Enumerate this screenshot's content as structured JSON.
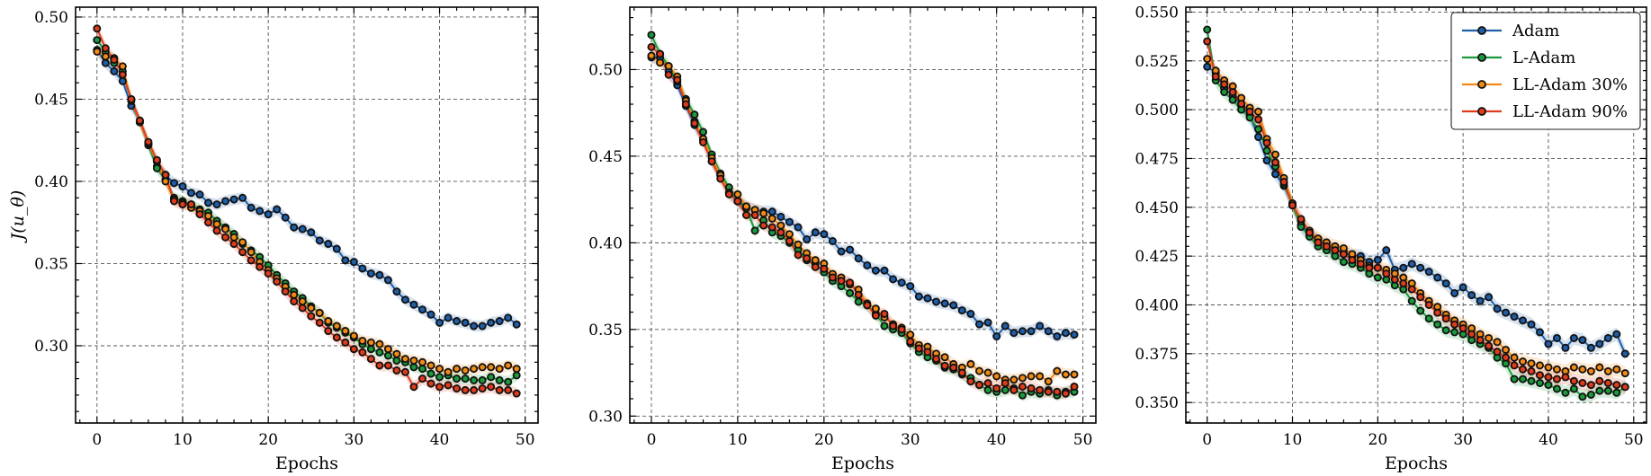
{
  "chart_data": [
    {
      "type": "line",
      "xlabel": "Epochs",
      "ylabel": "J(u_θ)",
      "xlim": [
        -2.5,
        51.5
      ],
      "ylim": [
        0.253,
        0.506
      ],
      "xticks": [
        0,
        10,
        20,
        30,
        40,
        50
      ],
      "yticks": [
        0.3,
        0.35,
        0.4,
        0.45,
        0.5
      ],
      "ytick_labels": [
        "0.30",
        "0.35",
        "0.40",
        "0.45",
        "0.50"
      ],
      "grid": true,
      "x": [
        0,
        1,
        2,
        3,
        4,
        5,
        6,
        7,
        8,
        9,
        10,
        11,
        12,
        13,
        14,
        15,
        16,
        17,
        18,
        19,
        20,
        21,
        22,
        23,
        24,
        25,
        26,
        27,
        28,
        29,
        30,
        31,
        32,
        33,
        34,
        35,
        36,
        37,
        38,
        39,
        40,
        41,
        42,
        43,
        44,
        45,
        46,
        47,
        48,
        49
      ],
      "series": [
        {
          "name": "Adam",
          "values": [
            0.48,
            0.472,
            0.467,
            0.461,
            0.446,
            0.437,
            0.422,
            0.409,
            0.404,
            0.399,
            0.397,
            0.393,
            0.392,
            0.387,
            0.386,
            0.388,
            0.389,
            0.39,
            0.384,
            0.382,
            0.38,
            0.383,
            0.378,
            0.372,
            0.371,
            0.369,
            0.364,
            0.362,
            0.359,
            0.352,
            0.351,
            0.347,
            0.344,
            0.343,
            0.34,
            0.333,
            0.328,
            0.325,
            0.322,
            0.319,
            0.314,
            0.317,
            0.315,
            0.314,
            0.312,
            0.312,
            0.314,
            0.315,
            0.317,
            0.313
          ]
        },
        {
          "name": "L-Adam",
          "values": [
            0.486,
            0.479,
            0.472,
            0.467,
            0.45,
            0.436,
            0.423,
            0.408,
            0.401,
            0.39,
            0.388,
            0.386,
            0.383,
            0.381,
            0.376,
            0.372,
            0.368,
            0.362,
            0.358,
            0.354,
            0.349,
            0.343,
            0.338,
            0.333,
            0.329,
            0.324,
            0.32,
            0.314,
            0.311,
            0.308,
            0.305,
            0.301,
            0.298,
            0.296,
            0.294,
            0.291,
            0.29,
            0.287,
            0.286,
            0.283,
            0.281,
            0.282,
            0.28,
            0.28,
            0.279,
            0.279,
            0.281,
            0.279,
            0.278,
            0.282
          ]
        },
        {
          "name": "LL-Adam 30%",
          "values": [
            0.479,
            0.476,
            0.475,
            0.47,
            0.449,
            0.436,
            0.423,
            0.412,
            0.4,
            0.389,
            0.387,
            0.384,
            0.382,
            0.379,
            0.374,
            0.371,
            0.366,
            0.363,
            0.357,
            0.351,
            0.346,
            0.341,
            0.336,
            0.331,
            0.327,
            0.323,
            0.32,
            0.315,
            0.312,
            0.309,
            0.306,
            0.303,
            0.302,
            0.301,
            0.298,
            0.295,
            0.292,
            0.291,
            0.29,
            0.288,
            0.286,
            0.284,
            0.286,
            0.285,
            0.286,
            0.287,
            0.287,
            0.286,
            0.288,
            0.286
          ]
        },
        {
          "name": "LL-Adam 90%",
          "values": [
            0.493,
            0.481,
            0.474,
            0.465,
            0.45,
            0.437,
            0.424,
            0.413,
            0.404,
            0.388,
            0.386,
            0.386,
            0.38,
            0.375,
            0.37,
            0.366,
            0.362,
            0.357,
            0.352,
            0.348,
            0.344,
            0.339,
            0.333,
            0.327,
            0.323,
            0.318,
            0.314,
            0.309,
            0.305,
            0.302,
            0.298,
            0.296,
            0.292,
            0.288,
            0.288,
            0.285,
            0.284,
            0.275,
            0.28,
            0.277,
            0.275,
            0.276,
            0.274,
            0.273,
            0.273,
            0.274,
            0.275,
            0.273,
            0.273,
            0.271
          ]
        }
      ]
    },
    {
      "type": "line",
      "xlabel": "Epochs",
      "ylabel": "",
      "xlim": [
        -2.5,
        51.5
      ],
      "ylim": [
        0.296,
        0.536
      ],
      "xticks": [
        0,
        10,
        20,
        30,
        40,
        50
      ],
      "yticks": [
        0.3,
        0.35,
        0.4,
        0.45,
        0.5
      ],
      "ytick_labels": [
        "0.30",
        "0.35",
        "0.40",
        "0.45",
        "0.50"
      ],
      "grid": true,
      "x": [
        0,
        1,
        2,
        3,
        4,
        5,
        6,
        7,
        8,
        9,
        10,
        11,
        12,
        13,
        14,
        15,
        16,
        17,
        18,
        19,
        20,
        21,
        22,
        23,
        24,
        25,
        26,
        27,
        28,
        29,
        30,
        31,
        32,
        33,
        34,
        35,
        36,
        37,
        38,
        39,
        40,
        41,
        42,
        43,
        44,
        45,
        46,
        47,
        48,
        49
      ],
      "series": [
        {
          "name": "Adam",
          "values": [
            0.507,
            0.507,
            0.499,
            0.491,
            0.479,
            0.468,
            0.459,
            0.447,
            0.439,
            0.429,
            0.424,
            0.421,
            0.419,
            0.418,
            0.418,
            0.415,
            0.412,
            0.409,
            0.402,
            0.406,
            0.405,
            0.401,
            0.395,
            0.396,
            0.391,
            0.387,
            0.384,
            0.384,
            0.379,
            0.377,
            0.375,
            0.369,
            0.368,
            0.366,
            0.365,
            0.364,
            0.361,
            0.359,
            0.353,
            0.354,
            0.346,
            0.352,
            0.348,
            0.349,
            0.349,
            0.352,
            0.349,
            0.346,
            0.348,
            0.347
          ]
        },
        {
          "name": "L-Adam",
          "values": [
            0.52,
            0.509,
            0.502,
            0.493,
            0.483,
            0.474,
            0.464,
            0.451,
            0.44,
            0.432,
            0.424,
            0.42,
            0.407,
            0.413,
            0.406,
            0.404,
            0.4,
            0.396,
            0.39,
            0.388,
            0.383,
            0.378,
            0.375,
            0.371,
            0.366,
            0.364,
            0.359,
            0.352,
            0.35,
            0.348,
            0.342,
            0.337,
            0.334,
            0.332,
            0.328,
            0.327,
            0.324,
            0.322,
            0.318,
            0.315,
            0.314,
            0.315,
            0.316,
            0.312,
            0.314,
            0.313,
            0.315,
            0.312,
            0.314,
            0.314
          ]
        },
        {
          "name": "LL-Adam 30%",
          "values": [
            0.508,
            0.504,
            0.502,
            0.496,
            0.482,
            0.47,
            0.46,
            0.449,
            0.439,
            0.429,
            0.428,
            0.421,
            0.419,
            0.417,
            0.414,
            0.41,
            0.405,
            0.399,
            0.394,
            0.39,
            0.388,
            0.382,
            0.38,
            0.376,
            0.373,
            0.365,
            0.362,
            0.357,
            0.353,
            0.351,
            0.347,
            0.341,
            0.34,
            0.336,
            0.334,
            0.33,
            0.328,
            0.33,
            0.326,
            0.325,
            0.323,
            0.321,
            0.321,
            0.322,
            0.323,
            0.323,
            0.32,
            0.326,
            0.324,
            0.324
          ]
        },
        {
          "name": "LL-Adam 90%",
          "values": [
            0.513,
            0.509,
            0.497,
            0.494,
            0.48,
            0.469,
            0.458,
            0.447,
            0.437,
            0.428,
            0.424,
            0.416,
            0.416,
            0.41,
            0.409,
            0.406,
            0.401,
            0.393,
            0.391,
            0.386,
            0.385,
            0.38,
            0.378,
            0.377,
            0.37,
            0.364,
            0.358,
            0.359,
            0.352,
            0.35,
            0.343,
            0.339,
            0.337,
            0.333,
            0.329,
            0.328,
            0.325,
            0.32,
            0.318,
            0.319,
            0.316,
            0.319,
            0.315,
            0.317,
            0.316,
            0.315,
            0.314,
            0.314,
            0.313,
            0.317
          ]
        }
      ]
    },
    {
      "type": "line",
      "xlabel": "Epochs",
      "ylabel": "",
      "xlim": [
        -2.5,
        51.5
      ],
      "ylim": [
        0.3395,
        0.5525
      ],
      "xticks": [
        0,
        10,
        20,
        30,
        40,
        50
      ],
      "yticks": [
        0.35,
        0.375,
        0.4,
        0.425,
        0.45,
        0.475,
        0.5,
        0.525,
        0.55
      ],
      "ytick_labels": [
        "0.350",
        "0.375",
        "0.400",
        "0.425",
        "0.450",
        "0.475",
        "0.500",
        "0.525",
        "0.550"
      ],
      "grid": true,
      "legend": {
        "position": "top-right",
        "entries": [
          "Adam",
          "L-Adam",
          "LL-Adam 30%",
          "LL-Adam 90%"
        ]
      },
      "x": [
        0,
        1,
        2,
        3,
        4,
        5,
        6,
        7,
        8,
        9,
        10,
        11,
        12,
        13,
        14,
        15,
        16,
        17,
        18,
        19,
        20,
        21,
        22,
        23,
        24,
        25,
        26,
        27,
        28,
        29,
        30,
        31,
        32,
        33,
        34,
        35,
        36,
        37,
        38,
        39,
        40,
        41,
        42,
        43,
        44,
        45,
        46,
        47,
        48,
        49
      ],
      "series": [
        {
          "name": "Adam",
          "values": [
            0.522,
            0.519,
            0.511,
            0.507,
            0.502,
            0.497,
            0.486,
            0.474,
            0.467,
            0.461,
            0.452,
            0.441,
            0.436,
            0.433,
            0.43,
            0.428,
            0.427,
            0.425,
            0.425,
            0.422,
            0.423,
            0.428,
            0.418,
            0.419,
            0.421,
            0.419,
            0.417,
            0.414,
            0.411,
            0.406,
            0.409,
            0.405,
            0.402,
            0.404,
            0.398,
            0.396,
            0.394,
            0.392,
            0.39,
            0.386,
            0.38,
            0.383,
            0.378,
            0.383,
            0.382,
            0.378,
            0.38,
            0.383,
            0.385,
            0.375
          ]
        },
        {
          "name": "L-Adam",
          "values": [
            0.541,
            0.515,
            0.509,
            0.505,
            0.5,
            0.496,
            0.49,
            0.479,
            0.471,
            0.462,
            0.451,
            0.44,
            0.435,
            0.43,
            0.428,
            0.425,
            0.422,
            0.421,
            0.419,
            0.416,
            0.414,
            0.413,
            0.41,
            0.408,
            0.402,
            0.397,
            0.393,
            0.39,
            0.387,
            0.386,
            0.385,
            0.382,
            0.38,
            0.378,
            0.373,
            0.37,
            0.362,
            0.362,
            0.361,
            0.36,
            0.359,
            0.357,
            0.355,
            0.357,
            0.353,
            0.354,
            0.356,
            0.356,
            0.355,
            0.358
          ]
        },
        {
          "name": "LL-Adam 30%",
          "values": [
            0.526,
            0.52,
            0.515,
            0.512,
            0.506,
            0.501,
            0.499,
            0.485,
            0.477,
            0.465,
            0.452,
            0.443,
            0.438,
            0.434,
            0.432,
            0.43,
            0.429,
            0.426,
            0.423,
            0.42,
            0.419,
            0.418,
            0.416,
            0.414,
            0.411,
            0.406,
            0.402,
            0.399,
            0.395,
            0.392,
            0.39,
            0.388,
            0.385,
            0.383,
            0.381,
            0.377,
            0.373,
            0.371,
            0.37,
            0.369,
            0.368,
            0.367,
            0.366,
            0.368,
            0.367,
            0.366,
            0.368,
            0.366,
            0.367,
            0.365
          ]
        },
        {
          "name": "LL-Adam 90%",
          "values": [
            0.535,
            0.517,
            0.513,
            0.509,
            0.503,
            0.499,
            0.495,
            0.483,
            0.473,
            0.463,
            0.451,
            0.444,
            0.437,
            0.432,
            0.43,
            0.428,
            0.426,
            0.423,
            0.421,
            0.419,
            0.419,
            0.416,
            0.413,
            0.411,
            0.408,
            0.404,
            0.4,
            0.396,
            0.393,
            0.39,
            0.388,
            0.385,
            0.382,
            0.379,
            0.376,
            0.373,
            0.369,
            0.367,
            0.366,
            0.364,
            0.363,
            0.362,
            0.363,
            0.361,
            0.36,
            0.359,
            0.361,
            0.36,
            0.359,
            0.358
          ]
        }
      ]
    }
  ],
  "colors": {
    "Adam": "#1f5ea8",
    "L-Adam": "#1a9a3c",
    "LL-Adam 30%": "#f28a14",
    "LL-Adam 90%": "#e03b1b",
    "marker_edge": "#111111"
  }
}
